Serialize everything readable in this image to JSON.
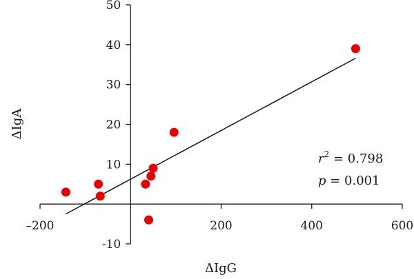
{
  "chart_data": {
    "type": "scatter",
    "title": "",
    "xlabel": "ΔIgG",
    "ylabel": "ΔIgA",
    "xlim": [
      -200,
      600
    ],
    "ylim": [
      -10,
      50
    ],
    "x_ticks": [
      -200,
      200,
      400,
      600
    ],
    "x_tick_labels": [
      "–200",
      "200",
      "400",
      "600"
    ],
    "y_ticks": [
      -10,
      10,
      20,
      30,
      40,
      50
    ],
    "y_tick_labels": [
      "-10",
      "10",
      "20",
      "30",
      "40",
      "50"
    ],
    "grid": false,
    "point_color": "#e60000",
    "series": [
      {
        "points": [
          {
            "x": -143,
            "y": 3
          },
          {
            "x": -71,
            "y": 5
          },
          {
            "x": -67,
            "y": 2
          },
          {
            "x": 33,
            "y": 5
          },
          {
            "x": 40,
            "y": -4
          },
          {
            "x": 45,
            "y": 7
          },
          {
            "x": 50,
            "y": 9
          },
          {
            "x": 96,
            "y": 18
          },
          {
            "x": 497,
            "y": 39
          }
        ]
      }
    ],
    "regression_line": {
      "x": [
        -143,
        497
      ],
      "y": [
        -2.5,
        36.6
      ]
    },
    "annotations": {
      "r2": {
        "symbol": "r",
        "superscript": "2",
        "text": " = 0.798"
      },
      "p": {
        "symbol": "p",
        "text": " = 0.001"
      }
    }
  }
}
